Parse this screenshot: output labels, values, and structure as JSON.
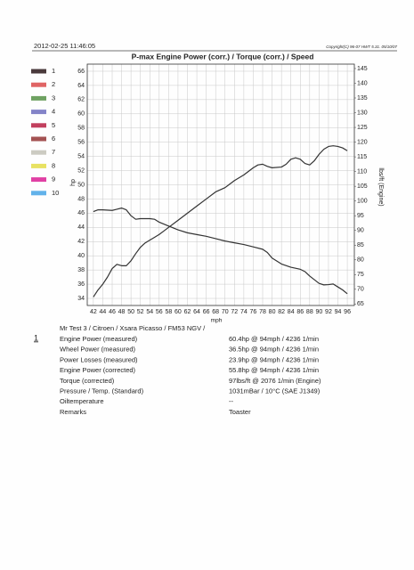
{
  "chart_data": {
    "type": "line",
    "timestamp": "2012-02-25 11:46:05",
    "copyright": "Copyright(C) 96-07 HWT 5.31. 05/10/07",
    "title": "P-max Engine Power (corr.) / Torque (corr.) / Speed",
    "xlabel": "mph",
    "ylabel": "hp",
    "y2label": "lbs/ft (Engine)",
    "xlim": [
      40.7,
      97.5
    ],
    "ylim": [
      33,
      67
    ],
    "y2lim": [
      64.5,
      146.5
    ],
    "xticks": [
      42,
      44,
      46,
      48,
      50,
      52,
      54,
      56,
      58,
      60,
      62,
      64,
      66,
      68,
      70,
      72,
      74,
      76,
      78,
      80,
      82,
      84,
      86,
      88,
      90,
      92,
      94,
      96
    ],
    "yticks": [
      34,
      36,
      38,
      40,
      42,
      44,
      46,
      48,
      50,
      52,
      54,
      56,
      58,
      60,
      62,
      64,
      66
    ],
    "y2ticks": [
      65,
      70,
      75,
      80,
      85,
      90,
      95,
      100,
      105,
      110,
      115,
      120,
      125,
      130,
      135,
      140,
      145
    ],
    "grid": true,
    "legend": [
      {
        "label": "1",
        "color": "#4a3a3c"
      },
      {
        "label": "2",
        "color": "#e06464"
      },
      {
        "label": "3",
        "color": "#6fa262"
      },
      {
        "label": "4",
        "color": "#8484c8"
      },
      {
        "label": "5",
        "color": "#c2405e"
      },
      {
        "label": "6",
        "color": "#a45252"
      },
      {
        "label": "7",
        "color": "#cccbc2"
      },
      {
        "label": "8",
        "color": "#e8e262"
      },
      {
        "label": "9",
        "color": "#e040a4"
      },
      {
        "label": "10",
        "color": "#62b2ea"
      }
    ],
    "series": [
      {
        "color": "#333333",
        "x": [
          42,
          43,
          44,
          45,
          46,
          47,
          48,
          49,
          50,
          51,
          52,
          53,
          54,
          55,
          56,
          57,
          58,
          60,
          62,
          64,
          66,
          68,
          70,
          72,
          74,
          76,
          77,
          78,
          79,
          80,
          82,
          83,
          84,
          85,
          86,
          87,
          88,
          89,
          90,
          91,
          92,
          93,
          94,
          95,
          96
        ],
        "values": [
          34.2,
          35.2,
          36.0,
          37.0,
          38.2,
          38.8,
          38.6,
          38.6,
          39.3,
          40.3,
          41.2,
          41.8,
          42.2,
          42.6,
          43.0,
          43.5,
          44.0,
          45.0,
          46.0,
          47.0,
          48.0,
          49.0,
          49.6,
          50.6,
          51.4,
          52.4,
          52.8,
          52.9,
          52.6,
          52.4,
          52.5,
          52.9,
          53.6,
          53.8,
          53.6,
          53.0,
          52.8,
          53.4,
          54.3,
          55.0,
          55.4,
          55.5,
          55.4,
          55.2,
          54.8
        ]
      },
      {
        "color": "#333333",
        "axis": "y2",
        "x": [
          42,
          43,
          44,
          46,
          47,
          48,
          49,
          50,
          51,
          52,
          54,
          55,
          56,
          58,
          60,
          62,
          64,
          66,
          68,
          70,
          72,
          74,
          76,
          78,
          79,
          80,
          82,
          84,
          86,
          87,
          88,
          90,
          91,
          92,
          93,
          94,
          95,
          96
        ],
        "values": [
          96.4,
          97.0,
          97.0,
          96.8,
          97.2,
          97.6,
          97.0,
          95.0,
          93.8,
          94.0,
          94.0,
          93.8,
          92.8,
          91.5,
          90.2,
          89.2,
          88.6,
          88.0,
          87.2,
          86.4,
          85.8,
          85.2,
          84.4,
          83.6,
          82.5,
          80.6,
          78.6,
          77.5,
          76.8,
          76.0,
          74.5,
          72.0,
          71.5,
          71.6,
          71.8,
          70.8,
          69.8,
          68.5
        ]
      }
    ]
  },
  "report": {
    "run": "1",
    "vehicle": "Mr Test 3 / Citroen / Xsara Picasso / FM53 NGV /",
    "rows": [
      [
        "Engine Power (measured)",
        "60.4hp @ 94mph / 4236 1/min"
      ],
      [
        "Wheel Power (measured)",
        "36.5hp @ 94mph / 4236 1/min"
      ],
      [
        "Power Losses (measured)",
        "23.9hp @ 94mph / 4236 1/min"
      ],
      [
        "Engine Power (corrected)",
        "55.8hp @ 94mph / 4236 1/min"
      ],
      [
        "Torque (corrected)",
        "97lbs/ft @ 2076 1/min (Engine)"
      ],
      [
        "Pressure / Temp. (Standard)",
        "1031mBar / 10°C  (SAE J1349)"
      ],
      [
        "Oiltemperature",
        "--"
      ],
      [
        "Remarks",
        "Toaster"
      ]
    ]
  }
}
